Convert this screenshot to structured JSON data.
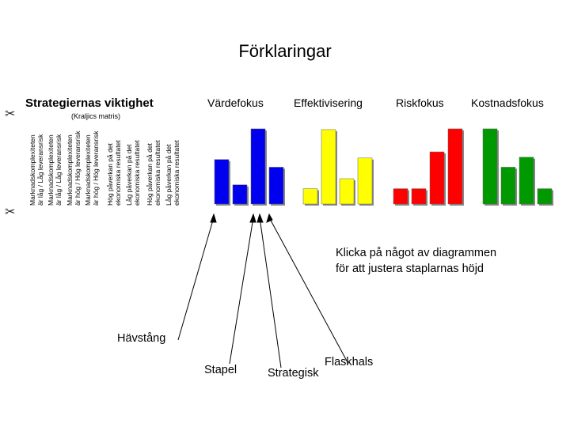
{
  "page": {
    "title": "Förklaringar",
    "heading": "Strategiernas viktighet",
    "subheading": "(Kraljics matris)",
    "instruction": "Klicka på något av diagrammen\nför att justera staplarnas höjd"
  },
  "focus_labels": [
    "Värdefokus",
    "Effektivisering",
    "Riskfokus",
    "Kostnadsfokus"
  ],
  "axis_labels": [
    "Marknadskomplexiteten\när låg / Låg leveransrisk",
    "Marknadskomplexiteten\när låg / Låg leveransrisk",
    "Marknadskomplexiteten\när hög / Hög leveransrisk",
    "Marknadskomplexiteten\när hög / Hög leveransrisk",
    "Hög påverkan på det\nekonomiska resultatet",
    "Låg påverkan på det\nekonomiska resultatet",
    "Hög påverkan på det\nekonomiska resultatet",
    "Låg påverkan på det\nekonomiska resultatet"
  ],
  "callouts": {
    "havstang": "Hävstång",
    "stapel": "Stapel",
    "strategisk": "Strategisk",
    "flaskhals": "Flaskhals"
  },
  "icons": {
    "scissors": "✂"
  },
  "colors": {
    "blue": "#0000ee",
    "yellow": "#ffff00",
    "red": "#ff0000",
    "green": "#009900"
  },
  "chart_data": {
    "type": "bar",
    "scale_max": 100,
    "groups": [
      {
        "color": "#0000ee",
        "values": [
          58,
          25,
          98,
          48
        ]
      },
      {
        "color": "#ffff00",
        "values": [
          20,
          97,
          33,
          60
        ]
      },
      {
        "color": "#ff0000",
        "values": [
          20,
          20,
          68,
          98
        ]
      },
      {
        "color": "#009900",
        "values": [
          98,
          48,
          61,
          20
        ]
      }
    ]
  }
}
